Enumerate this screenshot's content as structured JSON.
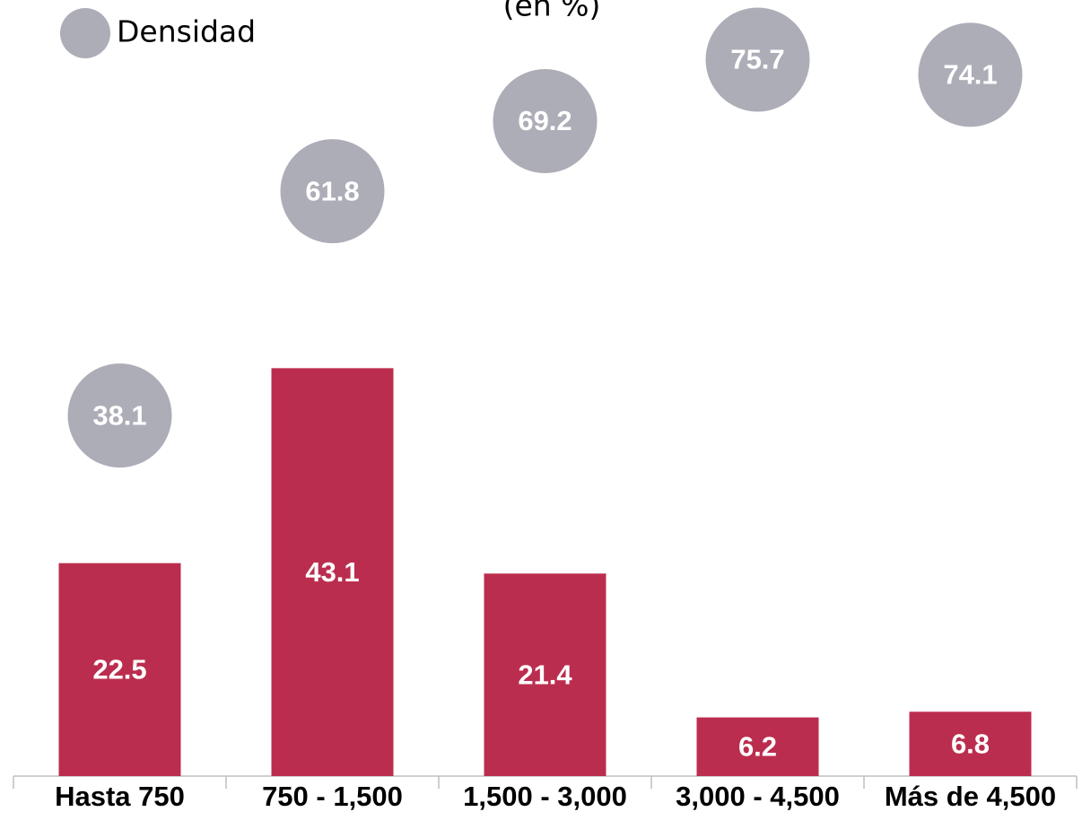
{
  "chart_data": {
    "type": "bar",
    "subtitle": "(en %)",
    "categories": [
      "Hasta 750",
      "750 - 1,500",
      "1,500 - 3,000",
      "3,000 - 4,500",
      "Más de 4,500"
    ],
    "series": [
      {
        "color": "#bb2d4e",
        "values": [
          22.5,
          43.1,
          21.4,
          6.2,
          6.8
        ]
      },
      {
        "name": "Densidad",
        "type": "bubble",
        "color": "#adadb8",
        "values": [
          38.1,
          61.8,
          69.2,
          75.7,
          74.1
        ]
      }
    ],
    "ylim": [
      0,
      82
    ],
    "legend": "top-left"
  }
}
